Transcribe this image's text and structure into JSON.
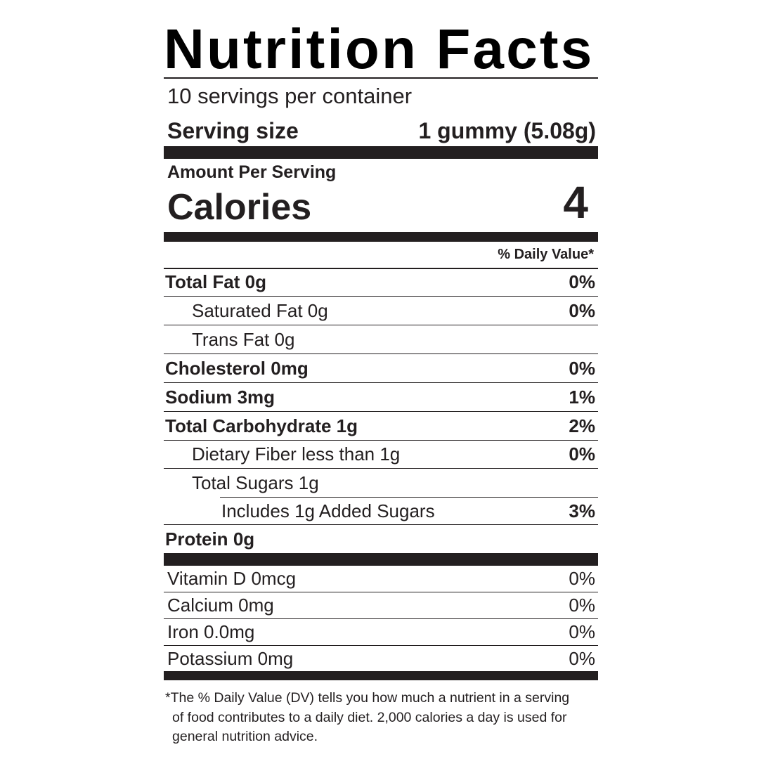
{
  "title": "Nutrition Facts",
  "servings": "10 servings per container",
  "serving_size": {
    "label": "Serving size",
    "value": "1 gummy (5.08g)"
  },
  "amount_per_serving": "Amount Per Serving",
  "calories": {
    "label": "Calories",
    "value": 4
  },
  "daily_value_header": "% Daily Value*",
  "nutrients": [
    {
      "name": "Total Fat",
      "amount": "0g",
      "dv": "0%"
    },
    {
      "name": "Saturated Fat",
      "amount": "0g",
      "dv": "0%"
    },
    {
      "name": "Trans Fat",
      "amount": "0g"
    },
    {
      "name": "Cholesterol",
      "amount": "0mg",
      "dv": "0%"
    },
    {
      "name": "Sodium",
      "amount": "3mg",
      "dv": "1%"
    },
    {
      "name": "Total Carbohydrate",
      "amount": "1g",
      "dv": "2%"
    },
    {
      "name": "Dietary Fiber",
      "amount": "less than 1g",
      "dv": "0%"
    },
    {
      "name": "Total Sugars",
      "amount": "1g"
    },
    {
      "name": "Includes",
      "amount": "1g Added Sugars",
      "dv": "3%"
    },
    {
      "name": "Protein",
      "amount": "0g"
    }
  ],
  "vitamins": [
    {
      "name": "Vitamin D",
      "amount": "0mcg",
      "dv": "0%"
    },
    {
      "name": "Calcium",
      "amount": "0mg",
      "dv": "0%"
    },
    {
      "name": "Iron",
      "amount": "0.0mg",
      "dv": "0%"
    },
    {
      "name": "Potassium",
      "amount": "0mg",
      "dv": "0%"
    }
  ],
  "footnote": "*The % Daily Value (DV) tells you how much a nutrient in a serving of food contributes to a daily diet. 2,000 calories a day is used for general nutrition advice."
}
